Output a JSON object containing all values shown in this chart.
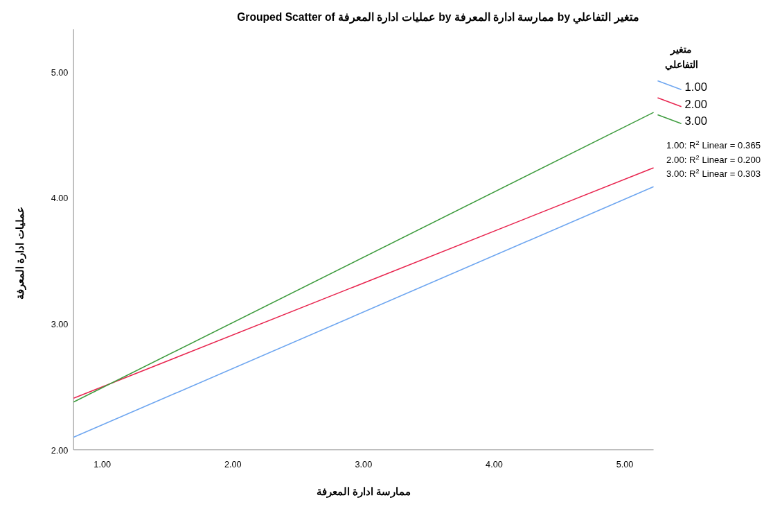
{
  "chart_data": {
    "type": "line",
    "title": "Grouped Scatter of عمليات ادارة المعرفة by ممارسة ادارة المعرفة by متغير التفاعلي",
    "xlabel": "ممارسة ادارة المعرفة",
    "ylabel": "عمليات ادارة المعرفة",
    "legend_title": "متغير التفاعلي",
    "x": [
      0.78,
      5.22
    ],
    "xlim": [
      0.78,
      5.22
    ],
    "xticks": [
      {
        "value": 1,
        "label": "1.00"
      },
      {
        "value": 2,
        "label": "2.00"
      },
      {
        "value": 3,
        "label": "3.00"
      },
      {
        "value": 4,
        "label": "4.00"
      },
      {
        "value": 5,
        "label": "5.00"
      }
    ],
    "ylim": [
      2,
      5.34
    ],
    "yticks": [
      {
        "value": 2,
        "label": "2.00"
      },
      {
        "value": 3,
        "label": "3.00"
      },
      {
        "value": 4,
        "label": "4.00"
      },
      {
        "value": 5,
        "label": "5.00"
      }
    ],
    "series": [
      {
        "name": "1.00",
        "color": "#6ea6f0",
        "values": [
          2.1,
          4.09
        ]
      },
      {
        "name": "2.00",
        "color": "#e8254f",
        "values": [
          2.41,
          4.24
        ]
      },
      {
        "name": "3.00",
        "color": "#3f9c3f",
        "values": [
          2.38,
          4.68
        ]
      }
    ],
    "annotations": [
      "1.00: R$^{2}$ Linear = 0.365",
      "2.00: R$^{2}$ Linear = 0.200",
      "3.00: R$^{2}$ Linear = 0.303"
    ],
    "legend": "top right",
    "grid": false,
    "marker": "none",
    "line_style": "solid"
  }
}
